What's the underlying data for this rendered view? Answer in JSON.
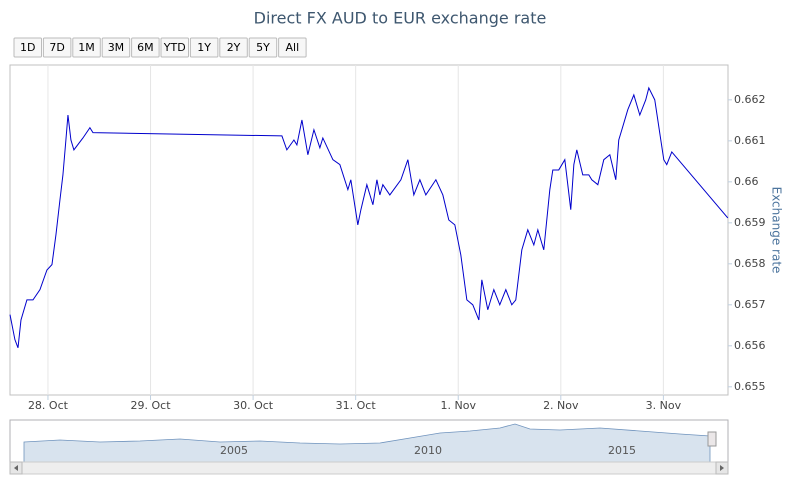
{
  "chart_data": {
    "type": "line",
    "title": "Direct FX AUD to EUR exchange rate",
    "y_label": "Exchange rate",
    "range_buttons": [
      "1D",
      "7D",
      "1M",
      "3M",
      "6M",
      "YTD",
      "1Y",
      "2Y",
      "5Y",
      "All"
    ],
    "navigator_labels": [
      "2005",
      "2010",
      "2015"
    ],
    "xlim": [
      27.63,
      34.63
    ],
    "xticks": [
      {
        "value": 28,
        "label": "28. Oct"
      },
      {
        "value": 29,
        "label": "29. Oct"
      },
      {
        "value": 30,
        "label": "30. Oct"
      },
      {
        "value": 31,
        "label": "31. Oct"
      },
      {
        "value": 32,
        "label": "1. Nov"
      },
      {
        "value": 33,
        "label": "2. Nov"
      },
      {
        "value": 34,
        "label": "3. Nov"
      }
    ],
    "ylim": [
      0.6548,
      0.66285
    ],
    "yticks": [
      0.655,
      0.656,
      0.657,
      0.658,
      0.659,
      0.66,
      0.661,
      0.662
    ],
    "grid": "x",
    "series": [
      {
        "name": "Exchange rate",
        "color": "#0000cc",
        "x": [
          27.63,
          27.678,
          27.708,
          27.737,
          27.795,
          27.854,
          27.922,
          27.99,
          28.039,
          28.078,
          28.117,
          28.146,
          28.175,
          28.195,
          28.224,
          28.253,
          28.341,
          28.409,
          28.439,
          30.281,
          30.329,
          30.398,
          30.427,
          30.476,
          30.534,
          30.593,
          30.651,
          30.68,
          30.778,
          30.846,
          30.924,
          30.953,
          31.021,
          31.051,
          31.109,
          31.168,
          31.207,
          31.236,
          31.265,
          31.333,
          31.441,
          31.509,
          31.567,
          31.626,
          31.684,
          31.782,
          31.85,
          31.908,
          31.967,
          32.025,
          32.084,
          32.142,
          32.201,
          32.23,
          32.288,
          32.347,
          32.405,
          32.464,
          32.522,
          32.561,
          32.62,
          32.678,
          32.737,
          32.776,
          32.834,
          32.893,
          32.922,
          32.98,
          33.039,
          33.097,
          33.127,
          33.156,
          33.214,
          33.273,
          33.302,
          33.361,
          33.419,
          33.478,
          33.536,
          33.565,
          33.595,
          33.653,
          33.712,
          33.77,
          33.828,
          33.858,
          33.916,
          33.975,
          34.004,
          34.033,
          34.082,
          34.628
        ],
        "values": [
          0.65676,
          0.65615,
          0.65595,
          0.65663,
          0.65712,
          0.65712,
          0.65737,
          0.65785,
          0.65798,
          0.65871,
          0.65956,
          0.66017,
          0.66102,
          0.66163,
          0.66102,
          0.66078,
          0.66107,
          0.66132,
          0.6612,
          0.66112,
          0.66078,
          0.66102,
          0.6609,
          0.66151,
          0.66066,
          0.66127,
          0.66083,
          0.66107,
          0.66054,
          0.66042,
          0.65981,
          0.66005,
          0.65895,
          0.65932,
          0.65993,
          0.65944,
          0.66005,
          0.65968,
          0.65993,
          0.65968,
          0.66005,
          0.66054,
          0.65968,
          0.66005,
          0.65968,
          0.66005,
          0.65968,
          0.65907,
          0.65895,
          0.65822,
          0.65712,
          0.657,
          0.65663,
          0.65761,
          0.65688,
          0.65737,
          0.657,
          0.65737,
          0.657,
          0.65712,
          0.65834,
          0.65883,
          0.65846,
          0.65883,
          0.65834,
          0.65981,
          0.66029,
          0.66029,
          0.66054,
          0.65932,
          0.66042,
          0.66078,
          0.66017,
          0.66017,
          0.66005,
          0.65993,
          0.66054,
          0.66066,
          0.66005,
          0.66102,
          0.66127,
          0.66176,
          0.66212,
          0.66163,
          0.662,
          0.66229,
          0.662,
          0.66102,
          0.66054,
          0.66042,
          0.66073,
          0.65912
        ]
      }
    ]
  }
}
